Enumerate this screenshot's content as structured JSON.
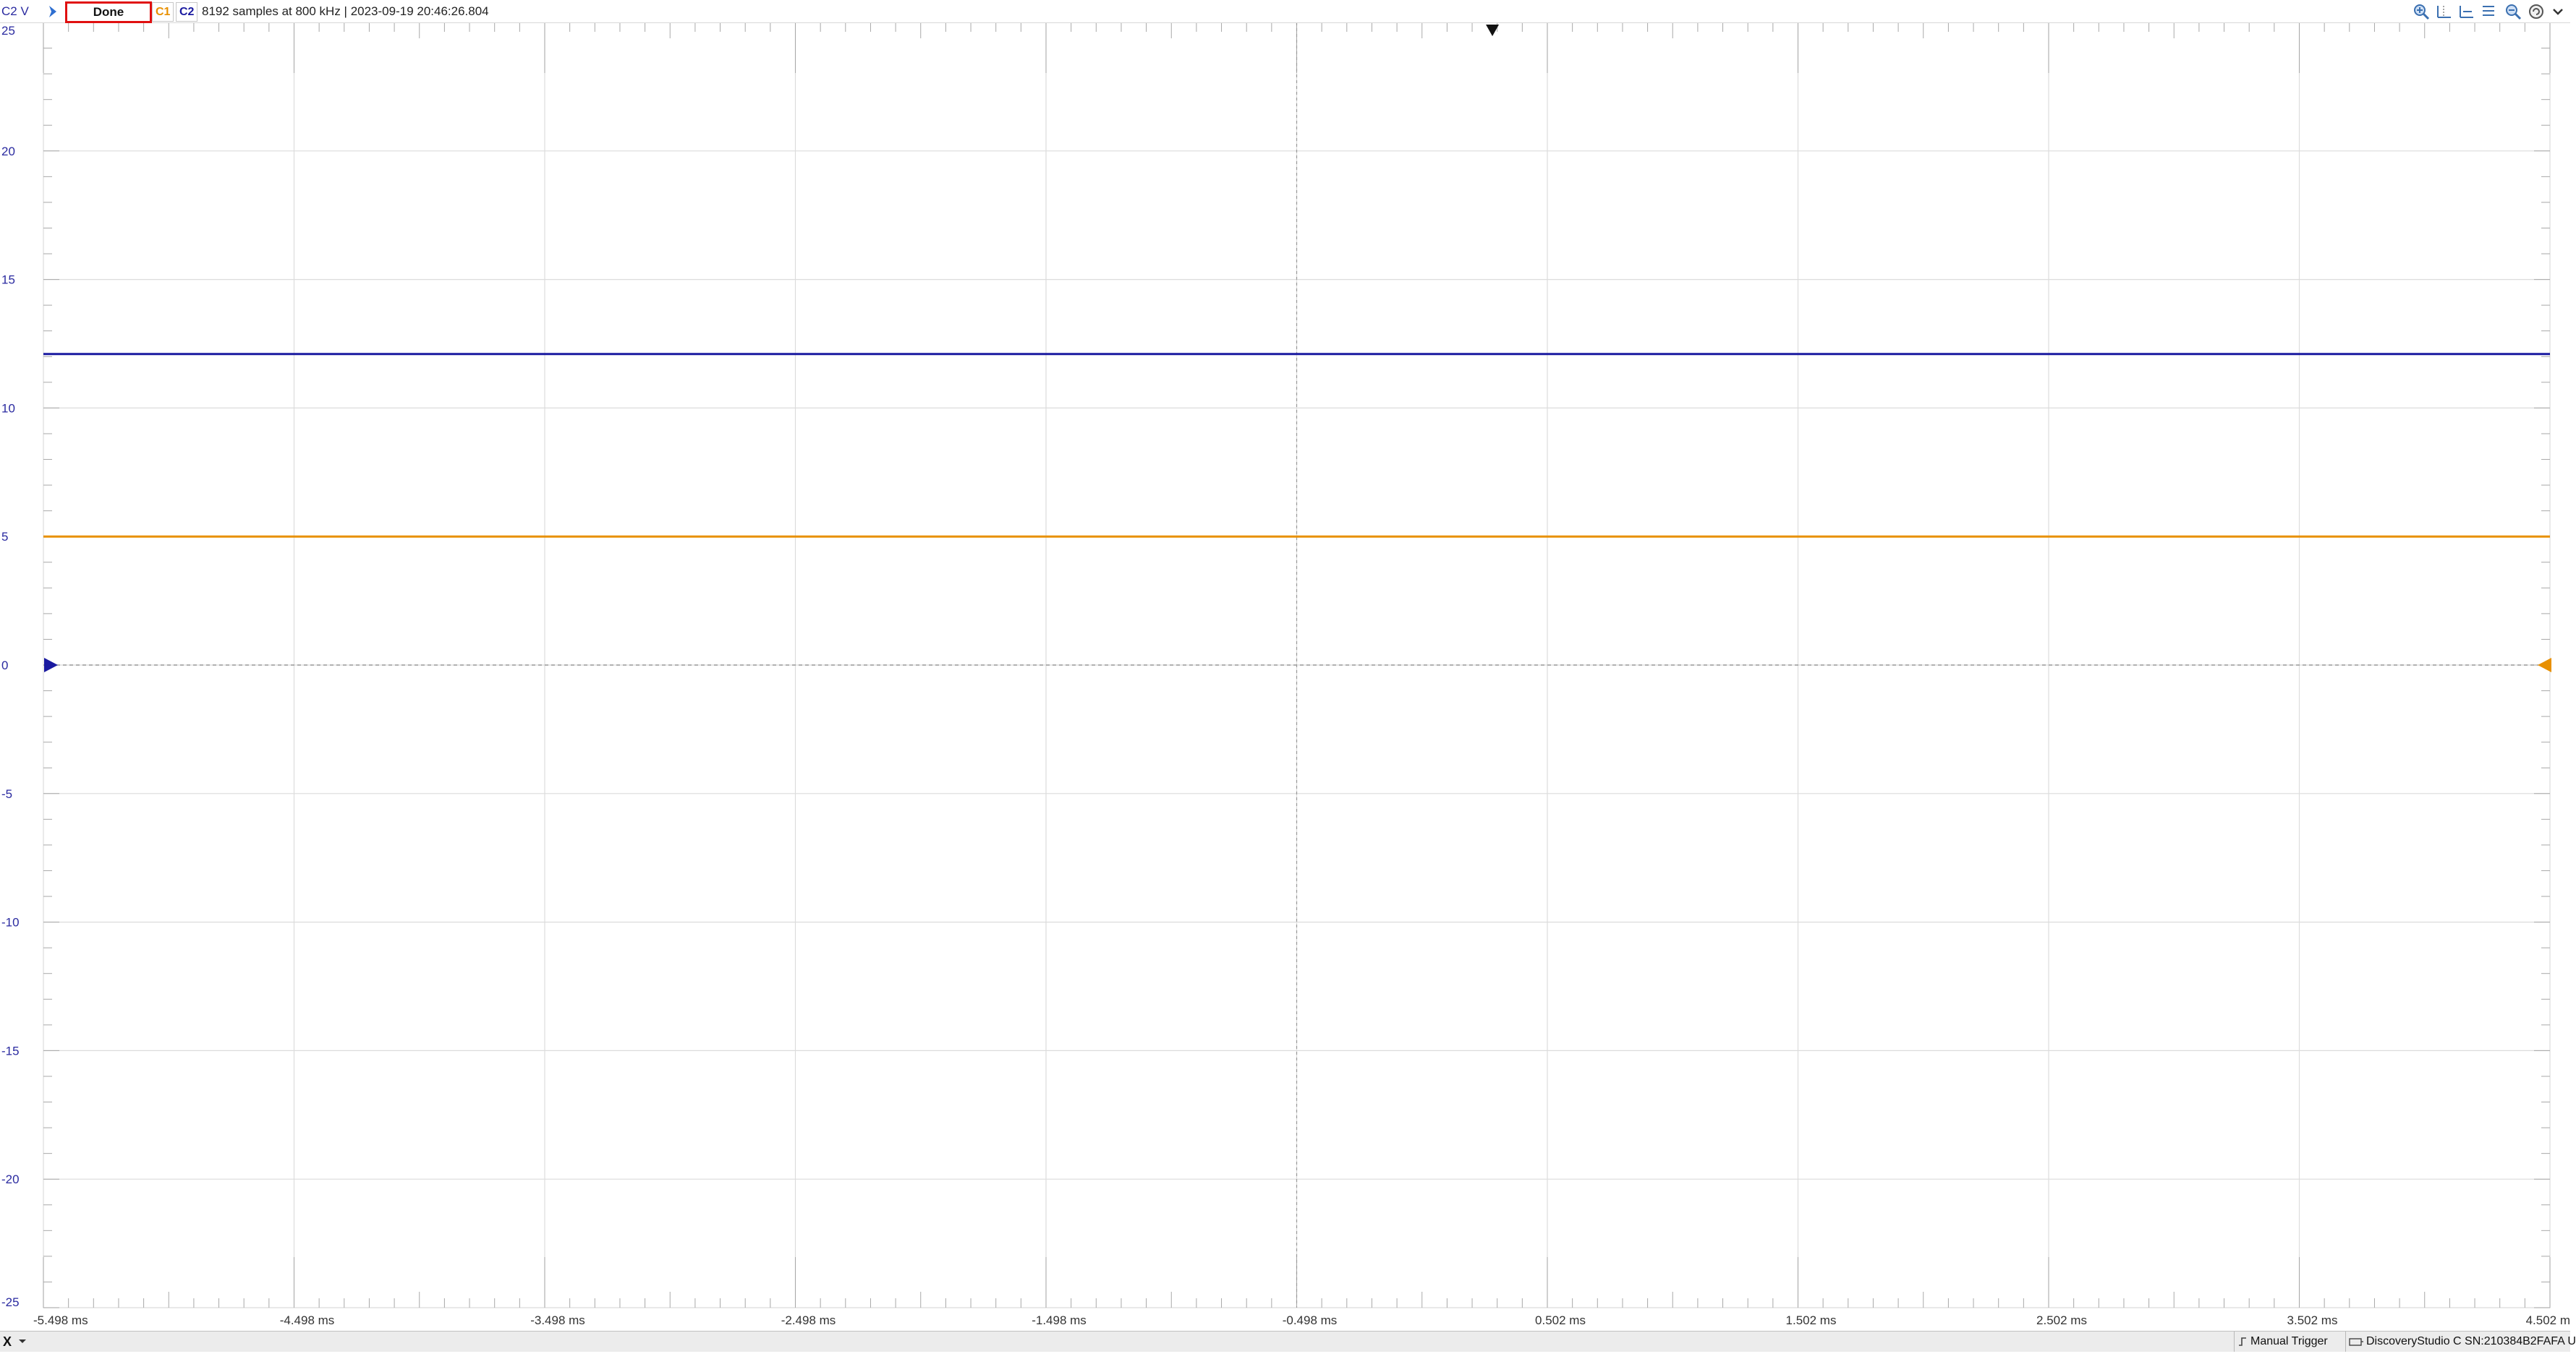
{
  "window": {
    "unit_label": "C2 V",
    "status": "Done",
    "ch1_tag": "C1",
    "ch2_tag": "C2",
    "acquisition_info": "8192 samples at 800 kHz | 2023-09-19 20:46:26.804",
    "tool_icons": [
      "zoom-in-icon",
      "cursor-x-icon",
      "cursor-left-icon",
      "cursor-list-icon",
      "zoom-out-icon",
      "reset-icon",
      "menu-icon"
    ]
  },
  "status_bar": {
    "x_label": "X",
    "trigger_mode": "Manual Trigger",
    "device": "DiscoveryStudio C SN:210384B2FAFA U"
  },
  "chart_data": {
    "type": "line",
    "grid": true,
    "xlim": [
      -5.498,
      4.502
    ],
    "ylim": [
      -25,
      25
    ],
    "x_ticks": [
      -5.498,
      -4.498,
      -3.498,
      -2.498,
      -1.498,
      -0.498,
      0.502,
      1.502,
      2.502,
      3.502,
      4.502
    ],
    "x_tick_labels": [
      "-5.498 ms",
      "-4.498 ms",
      "-3.498 ms",
      "-2.498 ms",
      "-1.498 ms",
      "-0.498 ms",
      "0.502 ms",
      "1.502 ms",
      "2.502 ms",
      "3.502 ms",
      "4.502 m"
    ],
    "y_ticks": [
      25,
      20,
      15,
      10,
      5,
      0,
      -5,
      -10,
      -15,
      -20,
      -25
    ],
    "y_tick_labels": [
      "25",
      "20",
      "15",
      "10",
      "5",
      "0",
      "-5",
      "-10",
      "-15",
      "-20",
      "-25"
    ],
    "trigger_time": 0,
    "series": [
      {
        "color": "#e89000",
        "x": [
          -5.498,
          4.502
        ],
        "y": [
          5.0,
          5.0
        ]
      },
      {
        "color": "#1a1aa0",
        "x": [
          -5.498,
          4.502
        ],
        "y": [
          12.1,
          12.1
        ]
      }
    ],
    "colors": {
      "grid": "#dcdcdc",
      "axis_text": "#2a2aa0",
      "time_text": "#333333",
      "zero_line": "#888888"
    }
  }
}
